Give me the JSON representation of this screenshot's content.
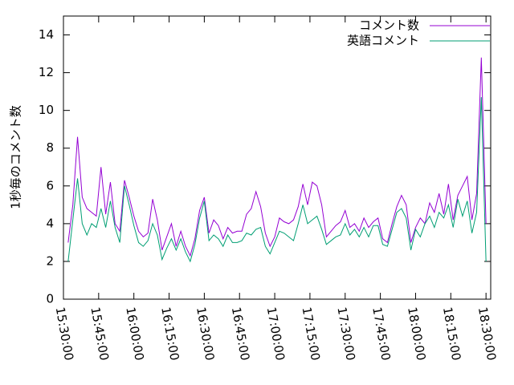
{
  "chart_data": {
    "type": "line",
    "ylabel": "1秒毎のコメント数",
    "x": [
      "15:32:00",
      "15:34:00",
      "15:36:00",
      "15:38:00",
      "15:40:00",
      "15:42:00",
      "15:44:00",
      "15:46:00",
      "15:48:00",
      "15:50:00",
      "15:52:00",
      "15:54:00",
      "15:56:00",
      "15:58:00",
      "16:00:00",
      "16:02:00",
      "16:04:00",
      "16:06:00",
      "16:08:00",
      "16:10:00",
      "16:12:00",
      "16:14:00",
      "16:16:00",
      "16:18:00",
      "16:20:00",
      "16:22:00",
      "16:24:00",
      "16:26:00",
      "16:28:00",
      "16:30:00",
      "16:32:00",
      "16:34:00",
      "16:36:00",
      "16:38:00",
      "16:40:00",
      "16:42:00",
      "16:44:00",
      "16:46:00",
      "16:48:00",
      "16:50:00",
      "16:52:00",
      "16:54:00",
      "16:56:00",
      "16:58:00",
      "17:00:00",
      "17:02:00",
      "17:04:00",
      "17:06:00",
      "17:08:00",
      "17:10:00",
      "17:12:00",
      "17:14:00",
      "17:16:00",
      "17:18:00",
      "17:20:00",
      "17:22:00",
      "17:24:00",
      "17:26:00",
      "17:28:00",
      "17:30:00",
      "17:32:00",
      "17:34:00",
      "17:36:00",
      "17:38:00",
      "17:40:00",
      "17:42:00",
      "17:44:00",
      "17:46:00",
      "17:48:00",
      "17:50:00",
      "17:52:00",
      "17:54:00",
      "17:56:00",
      "17:58:00",
      "18:00:00",
      "18:02:00",
      "18:04:00",
      "18:06:00",
      "18:08:00",
      "18:10:00",
      "18:12:00",
      "18:14:00",
      "18:16:00",
      "18:18:00",
      "18:20:00",
      "18:22:00",
      "18:24:00",
      "18:26:00",
      "18:28:00",
      "18:30:00"
    ],
    "series": [
      {
        "name": "コメント数",
        "color": "#9400d3",
        "values": [
          3.0,
          5.0,
          8.6,
          5.4,
          4.8,
          4.6,
          4.4,
          7.0,
          4.5,
          6.2,
          4.0,
          3.6,
          6.3,
          5.4,
          4.4,
          3.6,
          3.3,
          3.5,
          5.3,
          4.2,
          2.6,
          3.3,
          4.0,
          2.8,
          3.6,
          2.8,
          2.3,
          3.2,
          4.7,
          5.4,
          3.5,
          4.2,
          3.9,
          3.2,
          3.8,
          3.5,
          3.6,
          3.6,
          4.5,
          4.8,
          5.7,
          4.9,
          3.5,
          2.8,
          3.3,
          4.3,
          4.1,
          4.0,
          4.2,
          4.9,
          6.1,
          5.0,
          6.2,
          6.0,
          5.0,
          3.3,
          3.6,
          3.9,
          4.1,
          4.7,
          3.8,
          4.0,
          3.6,
          4.3,
          3.8,
          4.1,
          4.3,
          3.2,
          3.0,
          4.0,
          4.9,
          5.5,
          5.0,
          3.0,
          3.8,
          4.3,
          4.0,
          5.1,
          4.6,
          5.6,
          4.5,
          6.1,
          4.2,
          5.5,
          6.0,
          6.5,
          4.2,
          5.6,
          12.8,
          4.0
        ]
      },
      {
        "name": "英語コメント",
        "color": "#009e73",
        "values": [
          2.0,
          4.2,
          6.4,
          4.0,
          3.4,
          4.0,
          3.8,
          4.8,
          3.8,
          5.2,
          3.8,
          3.0,
          6.0,
          5.0,
          3.9,
          3.0,
          2.8,
          3.1,
          4.0,
          3.4,
          2.1,
          2.7,
          3.2,
          2.6,
          3.2,
          2.5,
          2.0,
          2.9,
          4.3,
          5.2,
          3.1,
          3.4,
          3.2,
          2.8,
          3.4,
          3.0,
          3.0,
          3.1,
          3.5,
          3.4,
          3.7,
          3.8,
          2.8,
          2.4,
          3.0,
          3.6,
          3.5,
          3.3,
          3.1,
          4.0,
          5.0,
          4.0,
          4.2,
          4.4,
          3.7,
          2.9,
          3.1,
          3.3,
          3.4,
          4.0,
          3.4,
          3.7,
          3.3,
          3.8,
          3.3,
          3.9,
          3.9,
          2.9,
          2.8,
          3.7,
          4.6,
          4.8,
          4.3,
          2.6,
          3.7,
          3.3,
          4.0,
          4.4,
          3.8,
          4.6,
          4.3,
          5.0,
          3.8,
          5.3,
          4.4,
          5.2,
          3.5,
          4.6,
          10.7,
          2.0
        ]
      }
    ],
    "xlim": [
      "15:30:00",
      "18:32:00"
    ],
    "xticks": [
      "15:30:00",
      "15:45:00",
      "16:00:00",
      "16:15:00",
      "16:30:00",
      "16:45:00",
      "17:00:00",
      "17:15:00",
      "17:30:00",
      "17:45:00",
      "18:00:00",
      "18:15:00",
      "18:30:00"
    ],
    "ylim": [
      0,
      15
    ],
    "yticks": [
      0,
      2,
      4,
      6,
      8,
      10,
      12,
      14
    ],
    "legend": "top-right"
  }
}
